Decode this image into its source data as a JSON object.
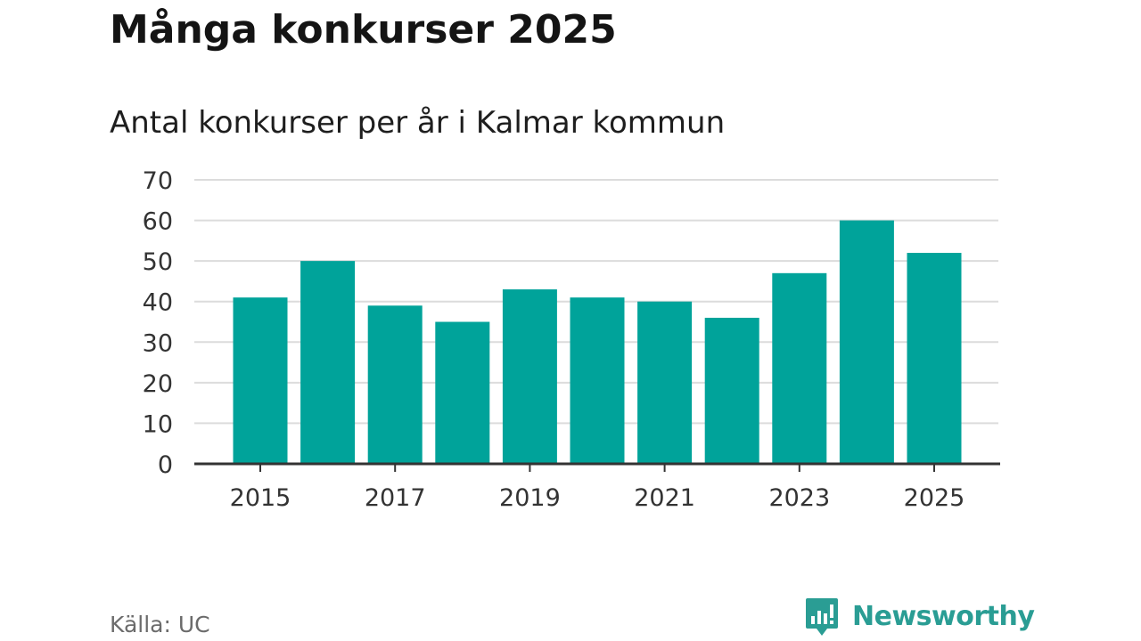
{
  "title": "Många konkurser 2025",
  "subtitle": "Antal konkurser per år i Kalmar kommun",
  "source": "Källa: UC",
  "brand": {
    "name": "Newsworthy",
    "icon": "newsworthy-logo-icon",
    "color": "#2a9d94"
  },
  "chart_data": {
    "type": "bar",
    "title": "Många konkurser 2025",
    "subtitle": "Antal konkurser per år i Kalmar kommun",
    "x": [
      2015,
      2016,
      2017,
      2018,
      2019,
      2020,
      2021,
      2022,
      2023,
      2024,
      2025
    ],
    "values": [
      41,
      50,
      39,
      35,
      43,
      41,
      40,
      36,
      47,
      60,
      52
    ],
    "x_tick_labels": [
      "2015",
      "2017",
      "2019",
      "2021",
      "2023",
      "2025"
    ],
    "y_ticks": [
      0,
      10,
      20,
      30,
      40,
      50,
      60,
      70
    ],
    "ylim": [
      0,
      70
    ],
    "xlabel": "",
    "ylabel": "",
    "grid": true,
    "legend": "none",
    "bar_color": "#00a39a",
    "grid_color": "#dcdcdc",
    "axis_color": "#333333"
  }
}
